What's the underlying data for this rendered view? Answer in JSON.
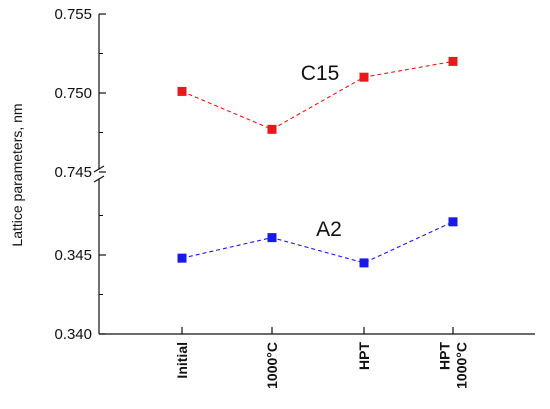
{
  "chart_data": {
    "type": "line",
    "categories": [
      [
        "Initial"
      ],
      [
        "1000°C"
      ],
      [
        "HPT"
      ],
      [
        "HPT",
        "1000°C"
      ]
    ],
    "ylabel": "Lattice parameters, nm",
    "broken_y_axis": true,
    "segments": [
      {
        "ylim": [
          0.745,
          0.755
        ],
        "ticks": [
          "0.745",
          "0.750",
          "0.755"
        ]
      },
      {
        "ylim": [
          0.34,
          0.35
        ],
        "ticks": [
          "0.340",
          "0.345"
        ]
      }
    ],
    "series": [
      {
        "name": "C15",
        "segment": 0,
        "values": [
          0.7501,
          0.7477,
          0.751,
          0.752
        ],
        "color": "#e8191a",
        "line_style": "dashed",
        "marker": "square"
      },
      {
        "name": "A2",
        "segment": 1,
        "values": [
          0.3448,
          0.3461,
          0.3445,
          0.3471
        ],
        "color": "#1a1ae8",
        "line_style": "dashed",
        "marker": "square"
      }
    ],
    "grid": false
  }
}
